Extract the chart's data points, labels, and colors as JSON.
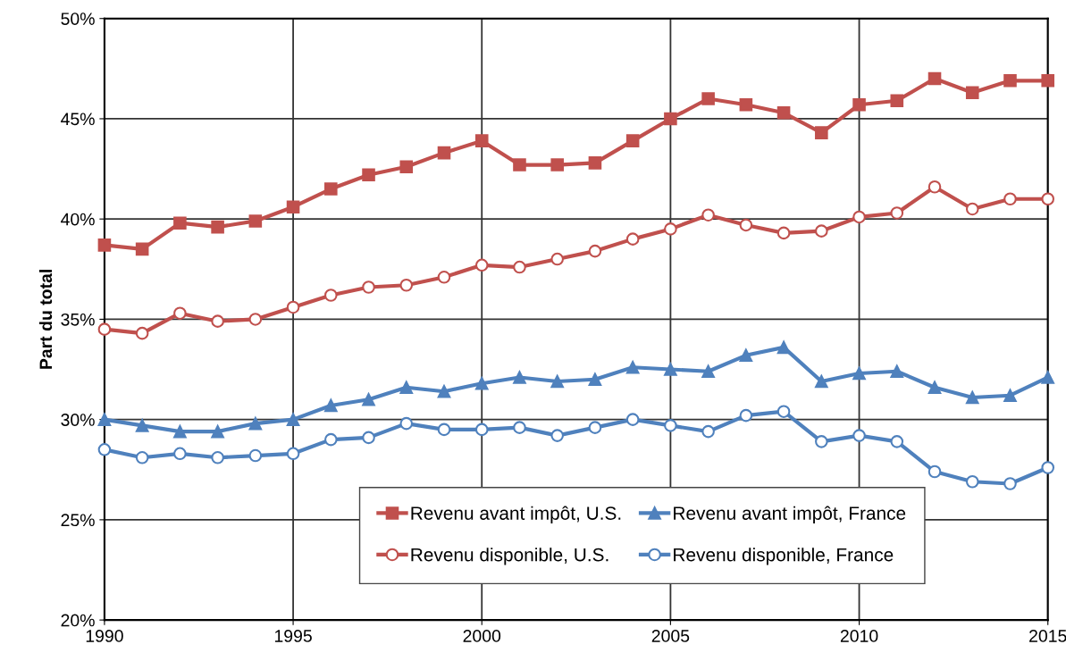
{
  "chart_data": {
    "type": "line",
    "ylabel": "Part du total",
    "x": [
      1990,
      1991,
      1992,
      1993,
      1994,
      1995,
      1996,
      1997,
      1998,
      1999,
      2000,
      2001,
      2002,
      2003,
      2004,
      2005,
      2006,
      2007,
      2008,
      2009,
      2010,
      2011,
      2012,
      2013,
      2014,
      2015
    ],
    "series": [
      {
        "name": "Revenu avant impôt, U.S.",
        "color": "#c0504d",
        "marker": "square",
        "values": [
          38.7,
          38.5,
          39.8,
          39.6,
          39.9,
          40.6,
          41.5,
          42.2,
          42.6,
          43.3,
          43.9,
          42.7,
          42.7,
          42.8,
          43.9,
          45.0,
          46.0,
          45.7,
          45.3,
          44.3,
          45.7,
          45.9,
          47.0,
          46.3,
          46.9,
          46.9
        ]
      },
      {
        "name": "Revenu disponible, U.S.",
        "color": "#c0504d",
        "marker": "circle",
        "values": [
          34.5,
          34.3,
          35.3,
          34.9,
          35.0,
          35.6,
          36.2,
          36.6,
          36.7,
          37.1,
          37.7,
          37.6,
          38.0,
          38.4,
          39.0,
          39.5,
          40.2,
          39.7,
          39.3,
          39.4,
          40.1,
          40.3,
          41.6,
          40.5,
          41.0,
          41.0
        ]
      },
      {
        "name": "Revenu avant impôt, France",
        "color": "#4f81bd",
        "marker": "triangle",
        "values": [
          30.0,
          29.7,
          29.4,
          29.4,
          29.8,
          30.0,
          30.7,
          31.0,
          31.6,
          31.4,
          31.8,
          32.1,
          31.9,
          32.0,
          32.6,
          32.5,
          32.4,
          33.2,
          33.6,
          31.9,
          32.3,
          32.4,
          31.6,
          31.1,
          31.2,
          32.1
        ]
      },
      {
        "name": "Revenu disponible, France",
        "color": "#4f81bd",
        "marker": "circle",
        "values": [
          28.5,
          28.1,
          28.3,
          28.1,
          28.2,
          28.3,
          29.0,
          29.1,
          29.8,
          29.5,
          29.5,
          29.6,
          29.2,
          29.6,
          30.0,
          29.7,
          29.4,
          30.2,
          30.4,
          28.9,
          29.2,
          28.9,
          27.4,
          26.9,
          26.8,
          27.6
        ]
      }
    ],
    "xlim": [
      1990,
      2015
    ],
    "xticks": [
      1990,
      1995,
      2000,
      2005,
      2010,
      2015
    ],
    "ylim": [
      20,
      50
    ],
    "yticks": [
      {
        "value": 20,
        "label": "20%"
      },
      {
        "value": 25,
        "label": "25%"
      },
      {
        "value": 30,
        "label": "30%"
      },
      {
        "value": 35,
        "label": "35%"
      },
      {
        "value": 40,
        "label": "40%"
      },
      {
        "value": 45,
        "label": "45%"
      },
      {
        "value": 50,
        "label": "50%"
      }
    ],
    "grid": true,
    "legend": "bottom",
    "line_style": "solid"
  }
}
